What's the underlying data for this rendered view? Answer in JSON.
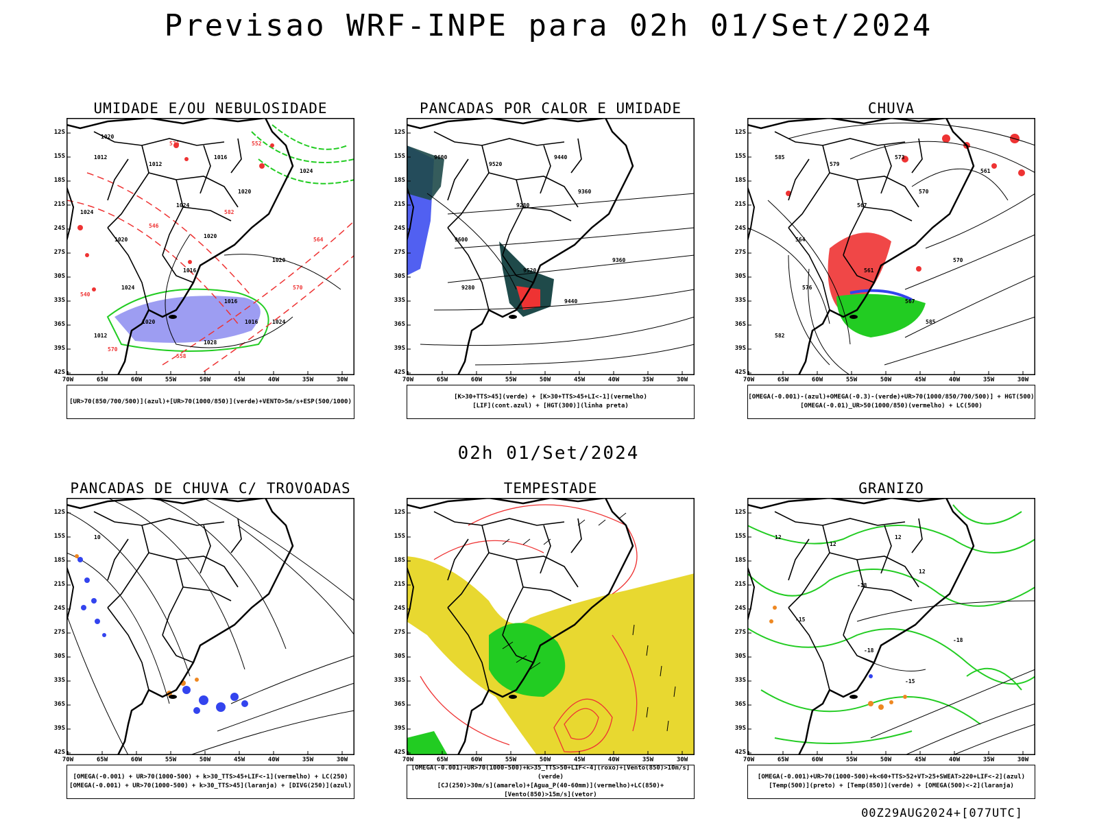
{
  "title": "Previsao WRF-INPE  para 02h 01/Set/2024",
  "mid_title": "02h 01/Set/2024",
  "footer": "00Z29AUG2024+[077UTC]",
  "lat_labels": [
    "12S",
    "15S",
    "18S",
    "21S",
    "24S",
    "27S",
    "30S",
    "33S",
    "36S",
    "39S",
    "42S"
  ],
  "lon_labels": [
    "70W",
    "65W",
    "60W",
    "55W",
    "50W",
    "45W",
    "40W",
    "35W",
    "30W"
  ],
  "colors": {
    "green": "#22cc22",
    "red": "#ee3333",
    "blue": "#3344ee",
    "orange": "#ee8822",
    "yellow": "#e8d830",
    "darkteal": "#1f4a4a",
    "lavender": "#8c8cf0"
  },
  "panels": [
    {
      "title": "UMIDADE E/OU NEBULOSIDADE",
      "legend": [
        "[UR>70(850/700/500)](azul)+[UR>70(1000/850)](verde)+VENTO>5m/s+ESP(500/1000)"
      ],
      "contour_labels": [
        "1012",
        "1012",
        "1016",
        "1020",
        "1024",
        "1020",
        "1016",
        "1016",
        "1020",
        "1024",
        "1012",
        "1016",
        "1024",
        "1024",
        "1020",
        "1020",
        "1024",
        "1028",
        "1020",
        "576",
        "570",
        "552",
        "546",
        "540",
        "564",
        "582",
        "570",
        "558"
      ]
    },
    {
      "title": "PANCADAS POR CALOR E UMIDADE",
      "legend": [
        "[K>30+TTS>45](verde) + [K>30+TTS>45+LI<-1](vermelho)",
        "[LIF](cont.azul) + [HGT(300)](linha preta)"
      ],
      "contour_labels": [
        "9600",
        "9520",
        "9440",
        "9360",
        "9280",
        "9600",
        "9520",
        "9440",
        "9360",
        "9280"
      ]
    },
    {
      "title": "CHUVA",
      "legend": [
        "[OMEGA(-0.001)-(azul)+OMEGA(-0.3)-(verde)+UR>70(1000/850/700/500)] + HGT(500)",
        "[OMEGA(-0.01)_UR>50(1000/850)(vermelho) + LC(500)"
      ],
      "contour_labels": [
        "585",
        "579",
        "573",
        "570",
        "567",
        "564",
        "561",
        "567",
        "570",
        "576",
        "582",
        "585",
        "561"
      ]
    },
    {
      "title": "PANCADAS DE CHUVA C/ TROVOADAS",
      "legend": [
        "[OMEGA(-0.001) + UR>70(1000-500) + k>30_TTS>45+LIF<-1](vermelho) + LC(250)",
        "[OMEGA(-0.001) + UR>70(1000-500) + k>30_TTS>45](laranja) + [DIVG(250)](azul)"
      ],
      "contour_labels": [
        "10"
      ]
    },
    {
      "title": "TEMPESTADE",
      "legend": [
        "[OMEGA(-0.001)+UR>70(1000-500)+k>35_TTS>50+LIF<-4](roxo)+[Vento(850)>10m/s](verde)",
        "[CJ(250)>30m/s](amarelo)+[Agua_P(40-60mm)](vermelho)+LC(850)+[Vento(850)>15m/s](vetor)"
      ],
      "contour_labels": []
    },
    {
      "title": "GRANIZO",
      "legend": [
        "[OMEGA(-0.001)+UR>70(1000-500)+k<60+TTS>52+VT>25+SWEAT>220+LIF<-2](azul)",
        "[Temp(500)](preto) + [Temp(850)](verde) + [OMEGA(500)<-2](laranja)"
      ],
      "contour_labels": [
        "12",
        "12",
        "12",
        "12",
        "-18",
        "-15",
        "-18",
        "-15",
        "-18"
      ]
    }
  ]
}
